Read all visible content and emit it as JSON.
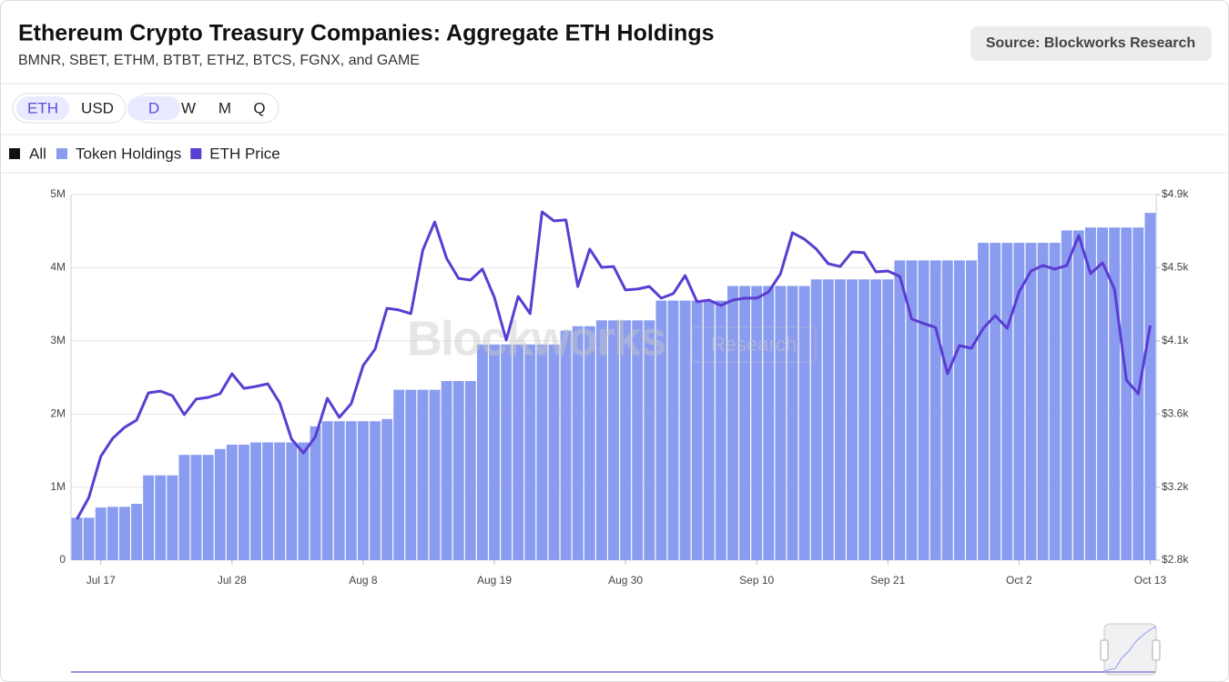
{
  "header": {
    "title": "Ethereum Crypto Treasury Companies: Aggregate ETH Holdings",
    "subtitle": "BMNR, SBET, ETHM, BTBT, ETHZ, BTCS, FGNX, and GAME",
    "source": "Source: Blockworks Research"
  },
  "controls": {
    "currency": [
      "ETH",
      "USD"
    ],
    "interval": [
      "D",
      "W",
      "M",
      "Q"
    ],
    "selected_currency": "ETH",
    "selected_interval": "D"
  },
  "legend_all": "All",
  "watermark": [
    "Blockworks",
    "Research"
  ],
  "chart_data": {
    "type": "bar",
    "categories": [
      null,
      null,
      "Jul 17",
      null,
      null,
      null,
      null,
      null,
      null,
      null,
      null,
      null,
      null,
      "Jul 28",
      null,
      null,
      null,
      null,
      null,
      null,
      null,
      null,
      null,
      null,
      "Aug 8",
      null,
      null,
      null,
      null,
      null,
      null,
      null,
      null,
      null,
      null,
      "Aug 19",
      null,
      null,
      null,
      null,
      null,
      null,
      null,
      null,
      null,
      null,
      "Aug 30",
      null,
      null,
      null,
      null,
      null,
      null,
      null,
      null,
      null,
      null,
      "Sep 10",
      null,
      null,
      null,
      null,
      null,
      null,
      null,
      null,
      null,
      null,
      "Sep 21",
      null,
      null,
      null,
      null,
      null,
      null,
      null,
      null,
      null,
      null,
      "Oct 2",
      null,
      null,
      null,
      null,
      null,
      null,
      null,
      null,
      null,
      null,
      "Oct 13"
    ],
    "series": [
      {
        "name": "Token Holdings",
        "type": "bar",
        "color": "#8a9cef",
        "values": [
          580000,
          580000,
          720000,
          730000,
          730000,
          770000,
          1160000,
          1160000,
          1160000,
          1440000,
          1440000,
          1440000,
          1520000,
          1580000,
          1580000,
          1610000,
          1610000,
          1610000,
          1610000,
          1610000,
          1830000,
          1900000,
          1900000,
          1900000,
          1900000,
          1900000,
          1930000,
          2330000,
          2330000,
          2330000,
          2330000,
          2450000,
          2450000,
          2450000,
          2950000,
          2950000,
          2950000,
          2950000,
          2950000,
          2950000,
          2950000,
          3140000,
          3200000,
          3200000,
          3280000,
          3280000,
          3280000,
          3280000,
          3280000,
          3550000,
          3550000,
          3550000,
          3550000,
          3550000,
          3550000,
          3750000,
          3750000,
          3750000,
          3750000,
          3750000,
          3750000,
          3750000,
          3840000,
          3840000,
          3840000,
          3840000,
          3840000,
          3840000,
          3840000,
          4100000,
          4100000,
          4100000,
          4100000,
          4100000,
          4100000,
          4100000,
          4340000,
          4340000,
          4340000,
          4340000,
          4340000,
          4340000,
          4340000,
          4510000,
          4510000,
          4550000,
          4550000,
          4550000,
          4550000,
          4550000,
          4750000
        ]
      },
      {
        "name": "ETH Price",
        "type": "line",
        "axis": "y2",
        "color": "#5a3dd2",
        "values": [
          3035,
          3160,
          3396,
          3500,
          3563,
          3604,
          3761,
          3771,
          3745,
          3636,
          3725,
          3735,
          3756,
          3871,
          3787,
          3798,
          3813,
          3704,
          3495,
          3416,
          3510,
          3730,
          3620,
          3699,
          3918,
          4012,
          4247,
          4237,
          4216,
          4581,
          4743,
          4534,
          4419,
          4409,
          4472,
          4310,
          4064,
          4315,
          4216,
          4801,
          4749,
          4754,
          4372,
          4587,
          4482,
          4487,
          4352,
          4357,
          4372,
          4305,
          4331,
          4435,
          4284,
          4294,
          4263,
          4294,
          4305,
          4305,
          4341,
          4446,
          4681,
          4644,
          4587,
          4503,
          4487,
          4571,
          4566,
          4456,
          4461,
          4430,
          4185,
          4159,
          4137,
          3871,
          4033,
          4017,
          4132,
          4205,
          4132,
          4341,
          4461,
          4493,
          4472,
          4493,
          4665,
          4446,
          4508,
          4357,
          3834,
          3756,
          4148
        ]
      }
    ],
    "ylim": [
      0,
      5000000
    ],
    "yticks": [
      0,
      {
        "value": 1000000,
        "label": "1M"
      },
      {
        "value": 2000000,
        "label": "2M"
      },
      {
        "value": 3000000,
        "label": "3M"
      },
      {
        "value": 4000000,
        "label": "4M"
      },
      {
        "value": 5000000,
        "label": "5M"
      }
    ],
    "y2lim": [
      2800,
      4900
    ],
    "y2ticks": [
      {
        "value": 2800,
        "label": "$2.8k"
      },
      {
        "value": 3220,
        "label": "$3.2k"
      },
      {
        "value": 3640,
        "label": "$3.6k"
      },
      {
        "value": 4060,
        "label": "$4.1k"
      },
      {
        "value": 4480,
        "label": "$4.5k"
      },
      {
        "value": 4900,
        "label": "$4.9k"
      }
    ],
    "grid": true
  }
}
